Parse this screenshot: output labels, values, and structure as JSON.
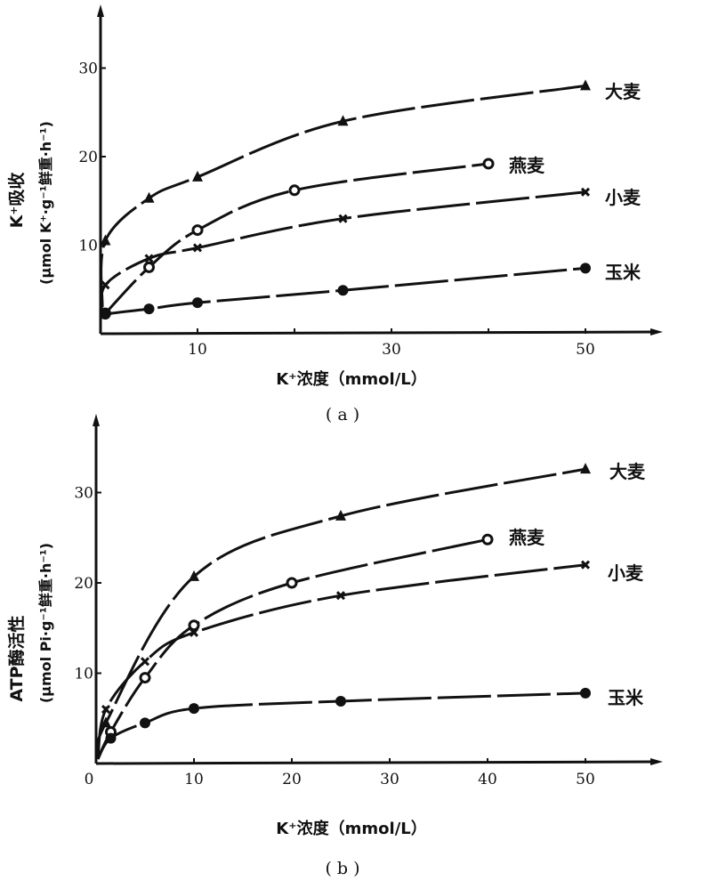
{
  "chart_data": [
    {
      "type": "line",
      "panel_caption": "( a )",
      "ylabel_main": "K⁺吸收",
      "ylabel_units": "(μmol K⁺·g⁻¹鲜重·h⁻¹)",
      "xlabel": "K⁺浓度（mmol/L）",
      "xlim": [
        0,
        58
      ],
      "ylim": [
        0,
        36
      ],
      "xticks": [
        10,
        20,
        30,
        40,
        50
      ],
      "xtick_labels": [
        "10",
        "",
        "30",
        "",
        "50"
      ],
      "yticks": [
        10,
        20,
        30
      ],
      "ytick_labels": [
        "10",
        "20",
        "30"
      ],
      "grid": false,
      "series": [
        {
          "name": "大麦",
          "marker": "triangle",
          "x": [
            0.5,
            5,
            10,
            25,
            50
          ],
          "y": [
            10.5,
            15.3,
            17.7,
            24,
            28
          ]
        },
        {
          "name": "燕麦",
          "marker": "circle",
          "x": [
            0.5,
            5,
            10,
            20,
            40
          ],
          "y": [
            2.3,
            7.5,
            11.7,
            16.2,
            19.2
          ]
        },
        {
          "name": "小麦",
          "marker": "x",
          "x": [
            0.5,
            5,
            10,
            25,
            50
          ],
          "y": [
            5.5,
            8.5,
            9.7,
            13,
            16
          ]
        },
        {
          "name": "玉米",
          "marker": "dot",
          "x": [
            0.5,
            5,
            10,
            25,
            50
          ],
          "y": [
            2.2,
            2.8,
            3.5,
            4.9,
            7.4
          ]
        }
      ]
    },
    {
      "type": "line",
      "panel_caption": "( b )",
      "ylabel_main": "ATP酶活性",
      "ylabel_units": "(μmol Pi·g⁻¹鲜重·h⁻¹)",
      "xlabel": "K⁺浓度（mmol/L）",
      "xlim": [
        0,
        58
      ],
      "ylim": [
        0,
        38
      ],
      "xticks": [
        0,
        10,
        20,
        30,
        40,
        50
      ],
      "xtick_labels": [
        "0",
        "10",
        "20",
        "30",
        "40",
        "50"
      ],
      "yticks": [
        10,
        20,
        30
      ],
      "ytick_labels": [
        "10",
        "20",
        "30"
      ],
      "grid": false,
      "series": [
        {
          "name": "大麦",
          "marker": "triangle",
          "x": [
            1,
            10,
            25,
            50
          ],
          "y": [
            4.5,
            20.7,
            27.4,
            32.6
          ]
        },
        {
          "name": "燕麦",
          "marker": "circle",
          "x": [
            1.5,
            5,
            10,
            20,
            40
          ],
          "y": [
            3.5,
            9.5,
            15.3,
            20,
            24.8
          ]
        },
        {
          "name": "小麦",
          "marker": "x",
          "x": [
            1,
            5,
            10,
            25,
            50
          ],
          "y": [
            6,
            11.3,
            14.5,
            18.6,
            22
          ]
        },
        {
          "name": "玉米",
          "marker": "dot",
          "x": [
            1.5,
            5,
            10,
            25,
            50
          ],
          "y": [
            2.8,
            4.5,
            6.1,
            6.9,
            7.8
          ]
        }
      ]
    }
  ]
}
